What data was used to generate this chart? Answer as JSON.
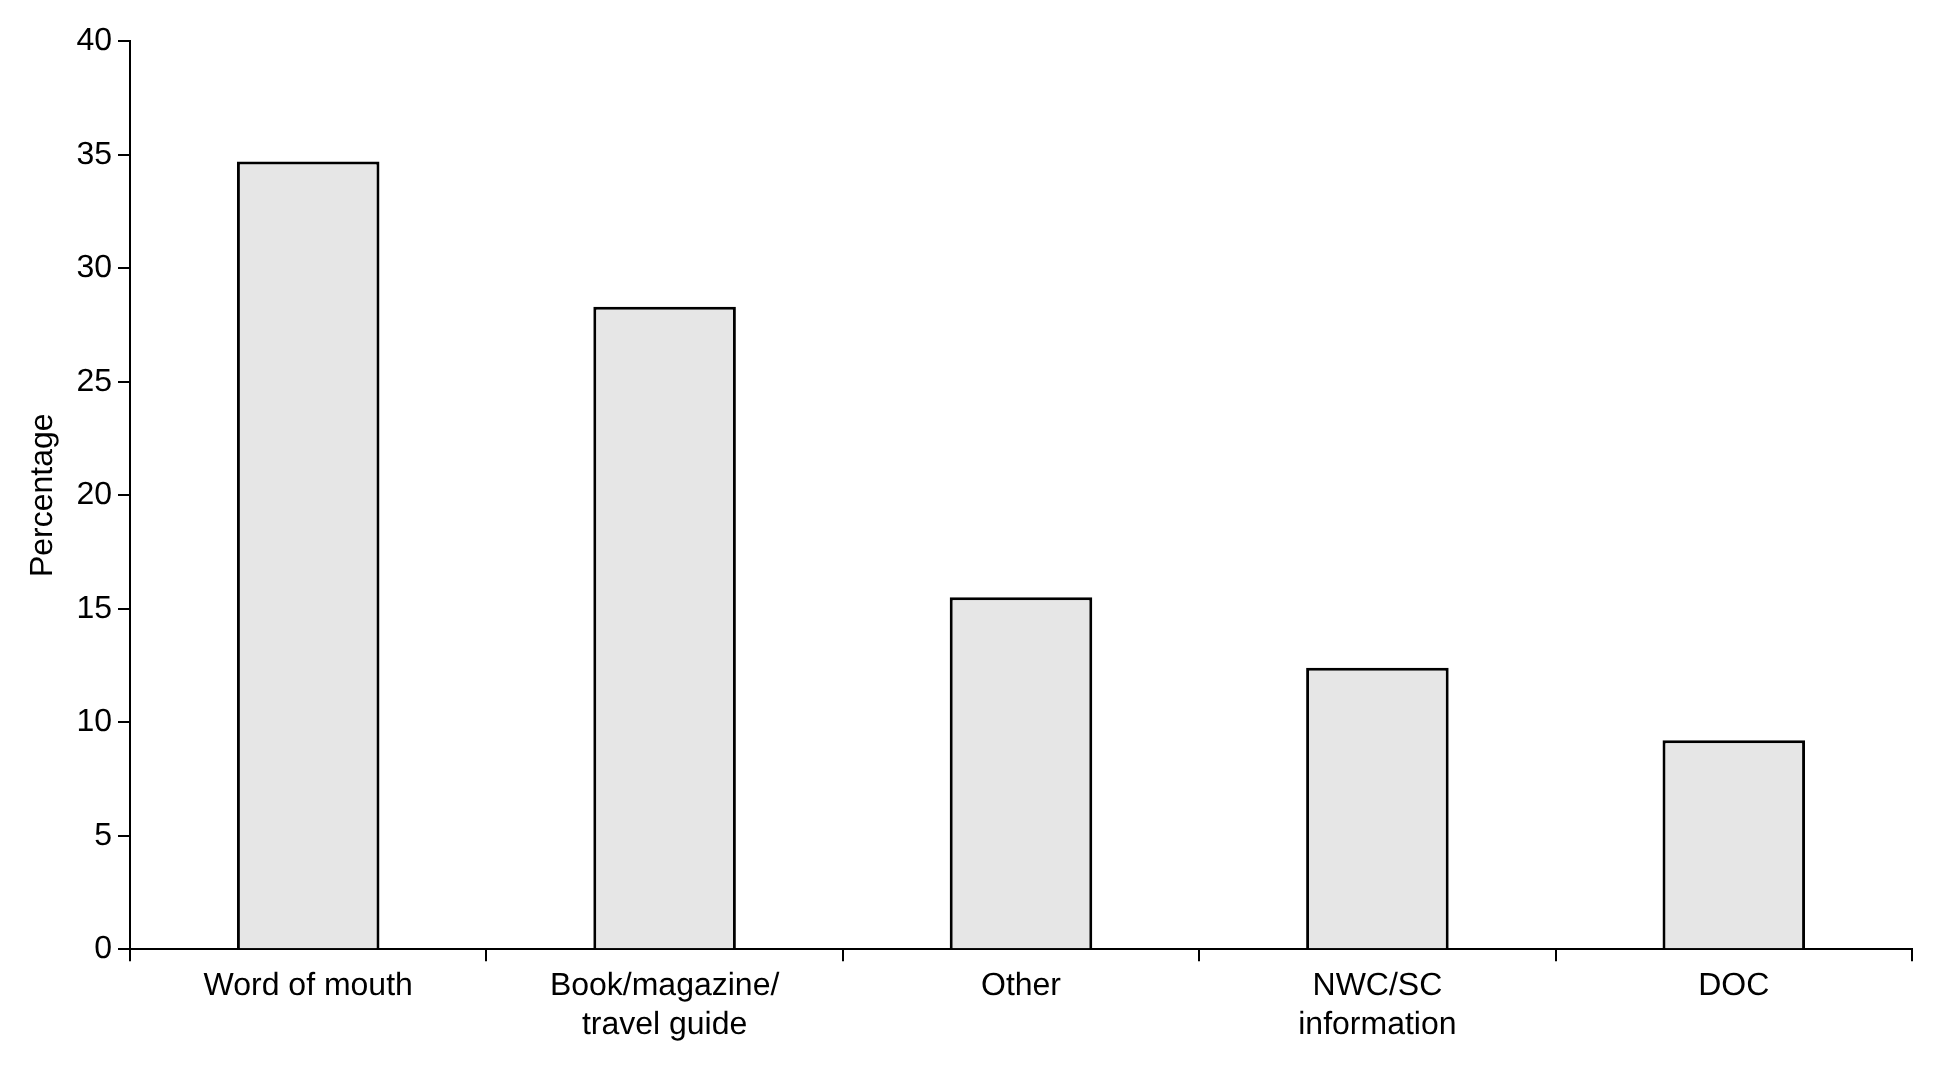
{
  "chart_data": {
    "type": "bar",
    "ylabel": "Percentage",
    "categories": [
      "Word of mouth",
      "Book/magazine/\ntravel guide",
      "Other",
      "NWC/SC\ninformation",
      "DOC"
    ],
    "values": [
      34.7,
      28.3,
      15.5,
      12.4,
      9.2
    ],
    "color": "#e6e6e6",
    "ylim": [
      0,
      40
    ],
    "yticks": [
      0,
      5,
      10,
      15,
      20,
      25,
      30,
      35,
      40
    ],
    "grid": false,
    "legend": false
  }
}
